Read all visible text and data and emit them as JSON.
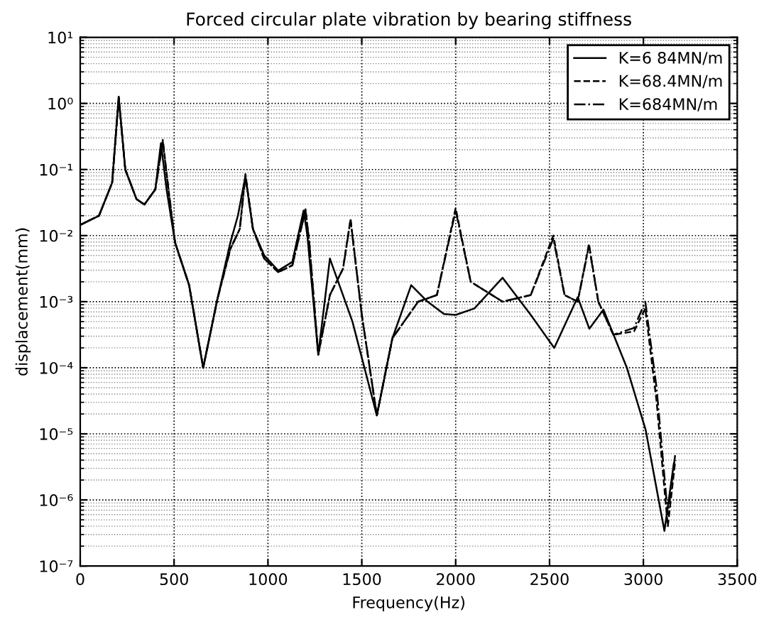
{
  "chart_data": {
    "type": "line",
    "title": "Forced circular plate vibration by bearing stiffness",
    "xlabel": "Frequency(Hz)",
    "ylabel": "displacement(mm)",
    "log": "y",
    "grid": true,
    "legend": "top right",
    "marker": "none",
    "xlim": [
      0,
      3500
    ],
    "xticks": [
      0,
      500,
      1000,
      1500,
      2000,
      2500,
      3000,
      3500
    ],
    "ylim": [
      1e-07,
      10
    ],
    "yticks": [
      {
        "value": 1e-07,
        "label": "10⁻⁷"
      },
      {
        "value": 1e-06,
        "label": "10⁻⁶"
      },
      {
        "value": 1e-05,
        "label": "10⁻⁵"
      },
      {
        "value": 0.0001,
        "label": "10⁻⁴"
      },
      {
        "value": 0.001,
        "label": "10⁻³"
      },
      {
        "value": 0.01,
        "label": "10⁻²"
      },
      {
        "value": 0.1,
        "label": "10⁻¹"
      },
      {
        "value": 1,
        "label": "10⁰"
      },
      {
        "value": 10,
        "label": "10¹"
      }
    ],
    "series": [
      {
        "name": "K=6 84MN/m",
        "color": "#000000",
        "line_style": "solid",
        "x": [
          0,
          100,
          170,
          205,
          240,
          300,
          342,
          400,
          430,
          460,
          505,
          580,
          655,
          730,
          800,
          840,
          880,
          920,
          980,
          1055,
          1130,
          1190,
          1210,
          1268,
          1330,
          1450,
          1580,
          1663,
          1763,
          1850,
          1938,
          2000,
          2100,
          2250,
          2400,
          2525,
          2650,
          2712,
          2787,
          2912,
          3012,
          3112,
          3162
        ],
        "values": [
          0.0145,
          0.02,
          0.063,
          1.26,
          0.1,
          0.0355,
          0.0295,
          0.05,
          0.25,
          0.05,
          0.0079,
          0.00178,
          0.0001,
          0.00107,
          0.0079,
          0.02,
          0.079,
          0.0126,
          0.005,
          0.00295,
          0.004,
          0.024,
          0.01,
          0.000158,
          0.0045,
          0.0005,
          1.9e-05,
          0.00028,
          0.00178,
          0.001,
          0.00065,
          0.00063,
          0.00079,
          0.0023,
          0.00063,
          0.0002,
          0.00117,
          0.00039,
          0.00076,
          0.0001,
          1.15e-05,
          3.4e-07,
          3.55e-06
        ]
      },
      {
        "name": "K=68.4MN/m",
        "color": "#000000",
        "line_style": "dashed",
        "x": [
          0,
          100,
          170,
          205,
          240,
          300,
          342,
          400,
          440,
          470,
          505,
          580,
          655,
          730,
          800,
          850,
          880,
          920,
          980,
          1055,
          1130,
          1200,
          1220,
          1268,
          1330,
          1400,
          1440,
          1500,
          1580,
          1663,
          1800,
          1900,
          2000,
          2080,
          2250,
          2400,
          2520,
          2580,
          2650,
          2710,
          2760,
          2840,
          2950,
          3010,
          3070,
          3130,
          3170
        ],
        "values": [
          0.0145,
          0.02,
          0.063,
          1.26,
          0.1,
          0.0355,
          0.0295,
          0.05,
          0.28,
          0.05,
          0.0079,
          0.00178,
          0.0001,
          0.00107,
          0.0063,
          0.0126,
          0.085,
          0.0126,
          0.0045,
          0.0028,
          0.00355,
          0.025,
          0.0079,
          0.000158,
          0.00126,
          0.00316,
          0.0178,
          0.00063,
          1.9e-05,
          0.00028,
          0.001,
          0.00126,
          0.026,
          0.002,
          0.001,
          0.00126,
          0.01,
          0.00126,
          0.001,
          0.0074,
          0.001,
          0.000316,
          0.000355,
          0.00079,
          3.16e-05,
          4e-07,
          4e-06
        ]
      },
      {
        "name": "K=684MN/m",
        "color": "#000000",
        "line_style": "dashdot",
        "x": [
          0,
          100,
          170,
          205,
          240,
          300,
          342,
          400,
          440,
          470,
          505,
          580,
          655,
          730,
          800,
          850,
          880,
          920,
          980,
          1055,
          1130,
          1200,
          1220,
          1268,
          1330,
          1400,
          1440,
          1500,
          1580,
          1663,
          1800,
          1900,
          2000,
          2080,
          2250,
          2400,
          2520,
          2580,
          2650,
          2710,
          2760,
          2840,
          2950,
          3010,
          3070,
          3130,
          3170
        ],
        "values": [
          0.0145,
          0.02,
          0.063,
          1.2,
          0.1,
          0.0355,
          0.0295,
          0.05,
          0.26,
          0.05,
          0.0079,
          0.00178,
          0.0001,
          0.00107,
          0.0063,
          0.0126,
          0.08,
          0.0126,
          0.0045,
          0.0028,
          0.00355,
          0.024,
          0.0079,
          0.000158,
          0.00126,
          0.00316,
          0.017,
          0.00063,
          1.9e-05,
          0.00028,
          0.001,
          0.00126,
          0.024,
          0.002,
          0.001,
          0.00126,
          0.009,
          0.00126,
          0.001,
          0.007,
          0.001,
          0.000316,
          0.0004,
          0.001,
          5e-05,
          6e-07,
          5e-06
        ]
      }
    ]
  }
}
